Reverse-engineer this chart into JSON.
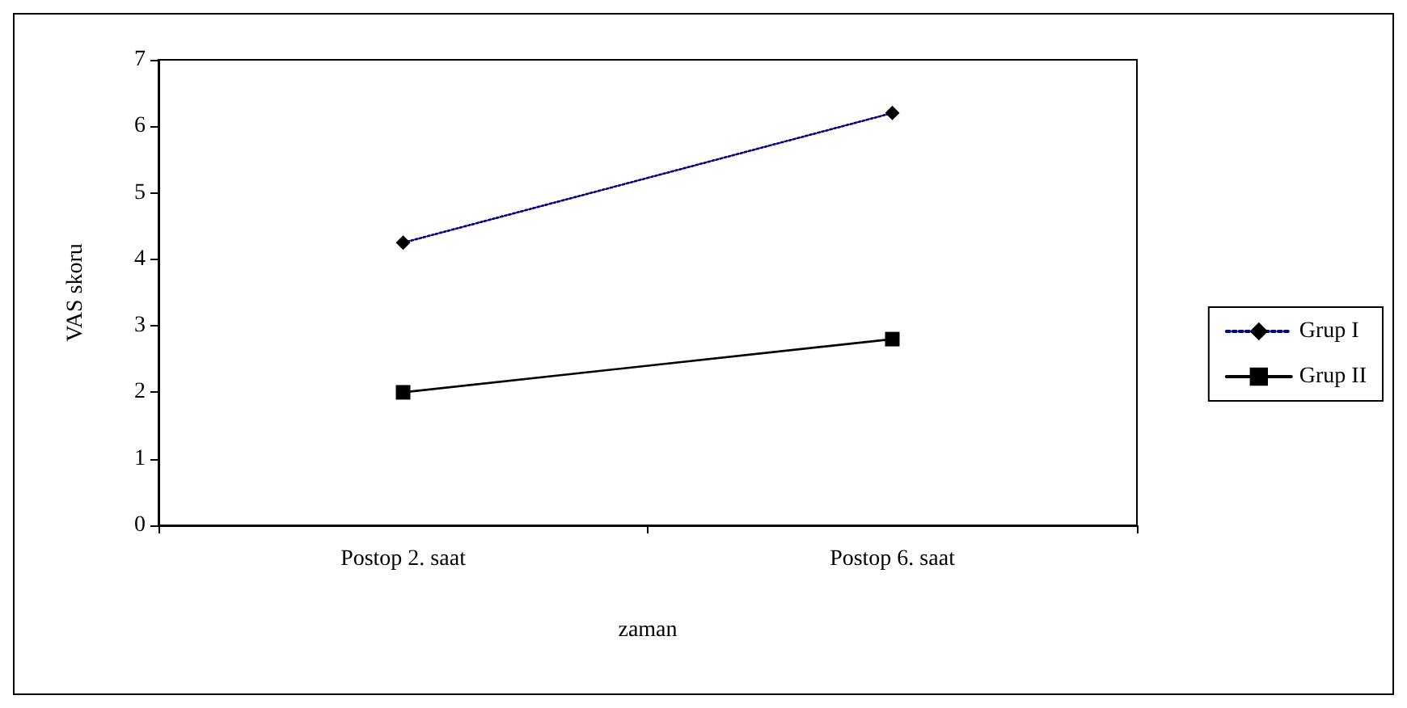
{
  "chart_data": {
    "type": "line",
    "xlabel": "zaman",
    "ylabel": "VAS skoru",
    "categories": [
      "Postop 2. saat",
      "Postop 6. saat"
    ],
    "series": [
      {
        "name": "Grup I",
        "color": "#000080",
        "values": [
          4.25,
          6.2
        ],
        "marker": "diamond",
        "line_style": "dotted"
      },
      {
        "name": "Grup II",
        "color": "#000000",
        "values": [
          2.0,
          2.8
        ],
        "marker": "square",
        "line_style": "solid"
      }
    ],
    "ylim": [
      0,
      7
    ],
    "yticks": [
      0,
      1,
      2,
      3,
      4,
      5,
      6,
      7
    ],
    "grid": false,
    "legend": "right"
  }
}
